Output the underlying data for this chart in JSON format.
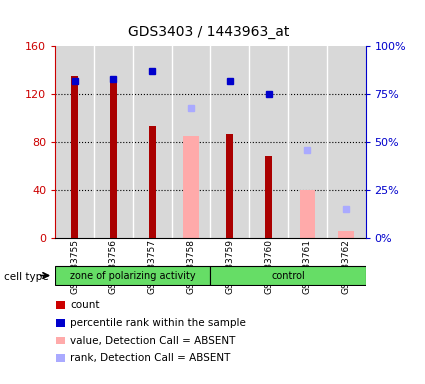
{
  "title": "GDS3403 / 1443963_at",
  "samples": [
    "GSM183755",
    "GSM183756",
    "GSM183757",
    "GSM183758",
    "GSM183759",
    "GSM183760",
    "GSM183761",
    "GSM183762"
  ],
  "group1_label": "zone of polarizing activity",
  "group2_label": "control",
  "group1_count": 4,
  "group2_count": 4,
  "ylim_left": [
    0,
    160
  ],
  "ylim_right": [
    0,
    100
  ],
  "yticks_left": [
    0,
    40,
    80,
    120,
    160
  ],
  "ytick_labels_left": [
    "0",
    "40",
    "80",
    "120",
    "160"
  ],
  "yticks_right": [
    0,
    25,
    50,
    75,
    100
  ],
  "ytick_labels_right": [
    "0%",
    "25%",
    "50%",
    "75%",
    "100%"
  ],
  "count_values": [
    135,
    134,
    93,
    null,
    87,
    68,
    null,
    null
  ],
  "count_color": "#aa0000",
  "percentile_values": [
    82,
    83,
    87,
    null,
    82,
    75,
    null,
    null
  ],
  "percentile_color": "#0000cc",
  "absent_value_values": [
    null,
    null,
    null,
    85,
    null,
    null,
    40,
    6
  ],
  "absent_rank_values": [
    null,
    null,
    null,
    68,
    null,
    null,
    46,
    15
  ],
  "absent_value_color": "#ffaaaa",
  "absent_rank_color": "#aaaaff",
  "bar_width": 0.5,
  "marker_size": 5,
  "left_axis_color": "#cc0000",
  "right_axis_color": "#0000cc",
  "col_bg_color": "#d8d8d8",
  "legend_items": [
    {
      "label": "count",
      "color": "#cc0000"
    },
    {
      "label": "percentile rank within the sample",
      "color": "#0000cc"
    },
    {
      "label": "value, Detection Call = ABSENT",
      "color": "#ffaaaa"
    },
    {
      "label": "rank, Detection Call = ABSENT",
      "color": "#aaaaff"
    }
  ],
  "cell_type_label": "cell type"
}
